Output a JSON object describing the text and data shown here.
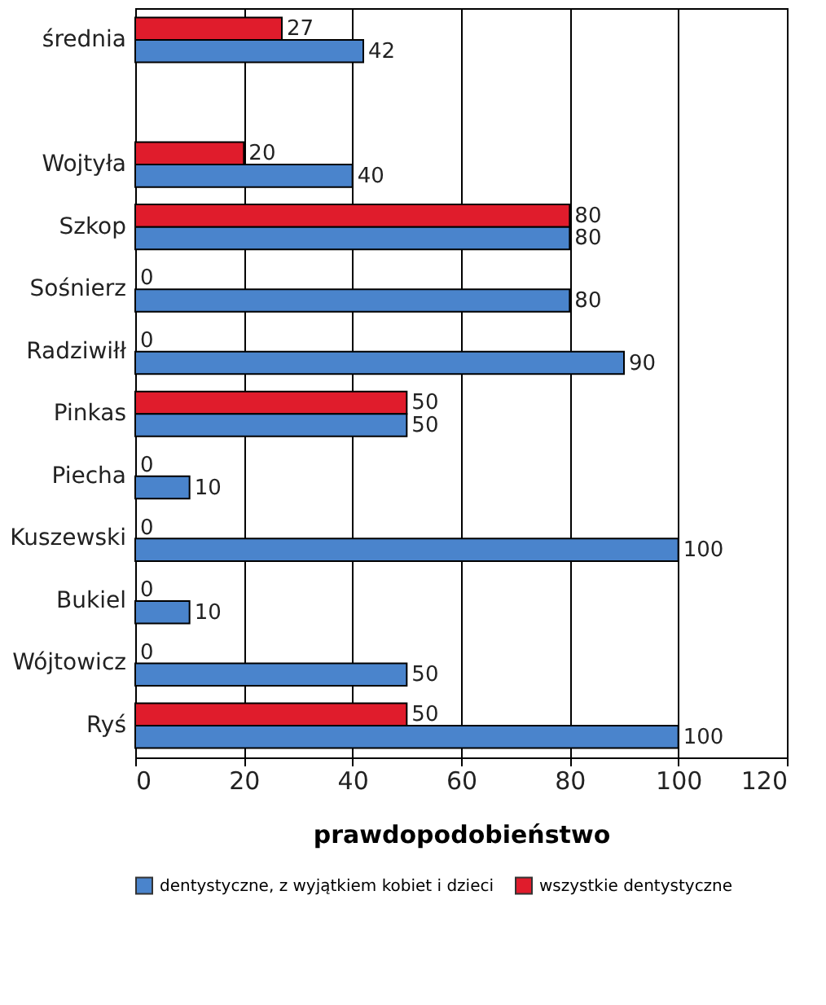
{
  "chart_data": {
    "type": "bar",
    "orientation": "horizontal",
    "xlabel": "prawdopodobieństwo",
    "categories": [
      "średnia",
      null,
      "Wojtyła",
      "Szkop",
      "Sośnierz",
      "Radziwiłł",
      "Pinkas",
      "Piecha",
      "Kuszewski",
      "Bukiel",
      "Wójtowicz",
      "Ryś"
    ],
    "series": [
      {
        "name": "wszystkie dentystyczne",
        "color": "#e01c2c",
        "values": [
          27,
          null,
          20,
          80,
          0,
          0,
          50,
          0,
          0,
          0,
          0,
          50
        ]
      },
      {
        "name": "dentystyczne, z wyjątkiem kobiet i dzieci",
        "color": "#4a84cc",
        "values": [
          42,
          null,
          40,
          80,
          80,
          90,
          50,
          10,
          100,
          10,
          50,
          100
        ]
      }
    ],
    "xlim": [
      0,
      120
    ],
    "xticks": [
      0,
      20,
      40,
      60,
      80,
      100,
      120
    ],
    "grid": "x",
    "legend": "bottom",
    "data_labels": true
  }
}
